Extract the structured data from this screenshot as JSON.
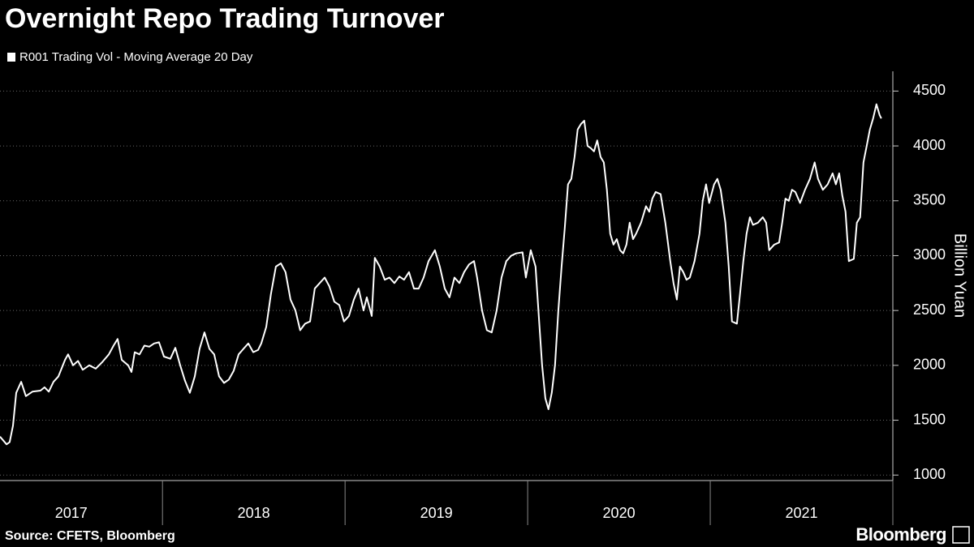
{
  "chart_data": {
    "type": "line",
    "title": "Overnight Repo Trading Turnover",
    "y_label": "Billion Yuan",
    "source": "Source: CFETS, Bloomberg",
    "brand": "Bloomberg",
    "xlim": [
      2017.11,
      2022
    ],
    "xticks": [
      {
        "value": 2017.5,
        "label": "2017"
      },
      {
        "value": 2018.5,
        "label": "2018"
      },
      {
        "value": 2019.5,
        "label": "2019"
      },
      {
        "value": 2020.5,
        "label": "2020"
      },
      {
        "value": 2021.5,
        "label": "2021"
      }
    ],
    "ylim": [
      950,
      4680
    ],
    "yticks": [
      1000,
      1500,
      2000,
      2500,
      3000,
      3500,
      4000,
      4500
    ],
    "grid": true,
    "series": [
      {
        "name": "R001 Trading Vol - Moving Average 20 Day",
        "color": "#ffffff",
        "x": [
          2017.11,
          2017.146,
          2017.163,
          2017.181,
          2017.199,
          2017.226,
          2017.252,
          2017.288,
          2017.332,
          2017.354,
          2017.377,
          2017.403,
          2017.43,
          2017.466,
          2017.483,
          2017.51,
          2017.537,
          2017.563,
          2017.599,
          2017.634,
          2017.67,
          2017.706,
          2017.732,
          2017.754,
          2017.777,
          2017.812,
          2017.83,
          2017.848,
          2017.874,
          2017.901,
          2017.928,
          2017.954,
          2017.981,
          2018.008,
          2018.043,
          2018.07,
          2018.097,
          2018.123,
          2018.15,
          2018.177,
          2018.203,
          2018.23,
          2018.257,
          2018.283,
          2018.31,
          2018.337,
          2018.363,
          2018.39,
          2018.417,
          2018.443,
          2018.47,
          2018.497,
          2018.523,
          2018.541,
          2018.568,
          2018.594,
          2018.621,
          2018.648,
          2018.674,
          2018.701,
          2018.728,
          2018.754,
          2018.781,
          2018.808,
          2018.834,
          2018.861,
          2018.888,
          2018.914,
          2018.941,
          2018.968,
          2018.994,
          2019.021,
          2019.048,
          2019.074,
          2019.101,
          2019.119,
          2019.146,
          2019.163,
          2019.19,
          2019.217,
          2019.243,
          2019.27,
          2019.297,
          2019.323,
          2019.35,
          2019.377,
          2019.403,
          2019.43,
          2019.457,
          2019.492,
          2019.519,
          2019.546,
          2019.572,
          2019.599,
          2019.626,
          2019.652,
          2019.679,
          2019.706,
          2019.723,
          2019.75,
          2019.777,
          2019.803,
          2019.83,
          2019.857,
          2019.883,
          2019.91,
          2019.937,
          2019.972,
          2019.99,
          2020.017,
          2020.043,
          2020.061,
          2020.079,
          2020.097,
          2020.114,
          2020.132,
          2020.15,
          2020.168,
          2020.186,
          2020.203,
          2020.221,
          2020.239,
          2020.257,
          2020.274,
          2020.292,
          2020.31,
          2020.328,
          2020.346,
          2020.363,
          2020.381,
          2020.399,
          2020.417,
          2020.434,
          2020.452,
          2020.47,
          2020.488,
          2020.506,
          2020.523,
          2020.541,
          2020.559,
          2020.577,
          2020.594,
          2020.621,
          2020.648,
          2020.666,
          2020.683,
          2020.701,
          2020.728,
          2020.754,
          2020.781,
          2020.799,
          2020.817,
          2020.834,
          2020.852,
          2020.87,
          2020.888,
          2020.914,
          2020.941,
          2020.959,
          2020.977,
          2020.994,
          2021.021,
          2021.039,
          2021.057,
          2021.083,
          2021.101,
          2021.119,
          2021.146,
          2021.163,
          2021.181,
          2021.199,
          2021.217,
          2021.234,
          2021.261,
          2021.288,
          2021.306,
          2021.323,
          2021.35,
          2021.377,
          2021.394,
          2021.412,
          2021.43,
          2021.448,
          2021.466,
          2021.492,
          2021.519,
          2021.546,
          2021.572,
          2021.59,
          2021.617,
          2021.643,
          2021.67,
          2021.688,
          2021.706,
          2021.723,
          2021.741,
          2021.759,
          2021.786,
          2021.803,
          2021.821,
          2021.839,
          2021.857,
          2021.874,
          2021.892,
          2021.91,
          2021.928,
          2021.937
        ],
        "values": [
          1350,
          1280,
          1300,
          1450,
          1750,
          1850,
          1720,
          1760,
          1770,
          1800,
          1760,
          1850,
          1900,
          2050,
          2100,
          2000,
          2040,
          1960,
          2000,
          1970,
          2030,
          2100,
          2180,
          2240,
          2050,
          2000,
          1940,
          2120,
          2100,
          2180,
          2170,
          2200,
          2210,
          2080,
          2060,
          2160,
          2000,
          1860,
          1750,
          1900,
          2150,
          2300,
          2150,
          2100,
          1900,
          1840,
          1870,
          1950,
          2100,
          2150,
          2200,
          2120,
          2140,
          2200,
          2350,
          2650,
          2900,
          2930,
          2850,
          2600,
          2500,
          2320,
          2380,
          2400,
          2700,
          2750,
          2800,
          2720,
          2580,
          2550,
          2400,
          2450,
          2600,
          2700,
          2500,
          2620,
          2450,
          2980,
          2900,
          2780,
          2800,
          2750,
          2810,
          2780,
          2850,
          2700,
          2700,
          2800,
          2950,
          3050,
          2900,
          2700,
          2620,
          2800,
          2750,
          2850,
          2920,
          2950,
          2800,
          2500,
          2320,
          2300,
          2500,
          2800,
          2950,
          3000,
          3020,
          3030,
          2800,
          3050,
          2900,
          2450,
          2000,
          1700,
          1600,
          1750,
          2000,
          2500,
          2900,
          3250,
          3650,
          3700,
          3900,
          4150,
          4200,
          4230,
          4000,
          3980,
          3950,
          4050,
          3900,
          3850,
          3600,
          3200,
          3100,
          3150,
          3050,
          3020,
          3100,
          3300,
          3150,
          3200,
          3300,
          3450,
          3400,
          3520,
          3580,
          3560,
          3300,
          2950,
          2750,
          2600,
          2900,
          2850,
          2780,
          2800,
          2950,
          3200,
          3500,
          3650,
          3480,
          3650,
          3700,
          3600,
          3300,
          2900,
          2400,
          2380,
          2650,
          2950,
          3200,
          3350,
          3280,
          3300,
          3350,
          3300,
          3050,
          3100,
          3120,
          3300,
          3520,
          3500,
          3600,
          3580,
          3480,
          3600,
          3700,
          3850,
          3700,
          3600,
          3650,
          3750,
          3650,
          3750,
          3550,
          3400,
          2950,
          2970,
          3300,
          3350,
          3850,
          4000,
          4150,
          4250,
          4380,
          4280,
          4250
        ]
      }
    ]
  }
}
